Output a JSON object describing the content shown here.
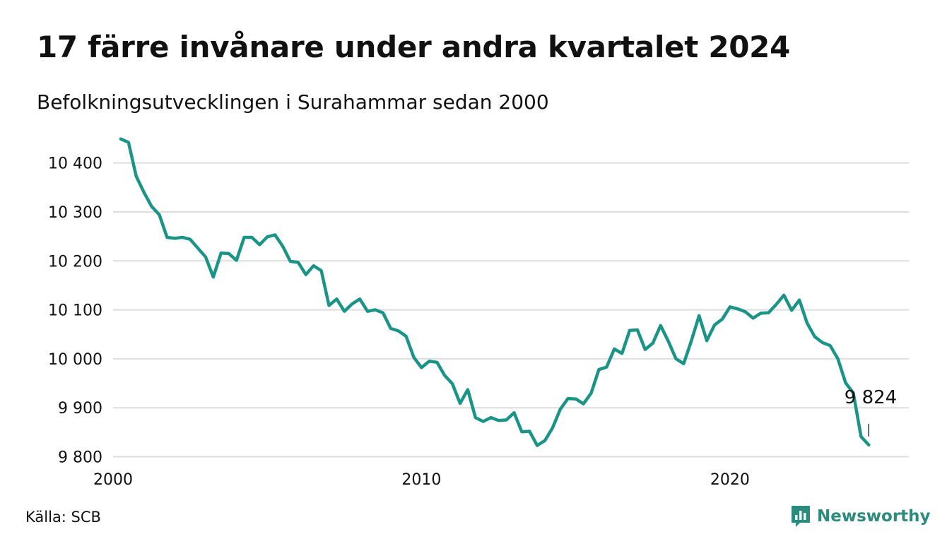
{
  "header": {
    "title": "17 färre invånare under andra kvartalet 2024",
    "subtitle": "Befolkningsutvecklingen i Surahammar sedan 2000"
  },
  "footer": {
    "source": "Källa: SCB",
    "brand": "Newsworthy"
  },
  "colors": {
    "line": "#1a9486",
    "grid": "#dddddd",
    "brand": "#2a8c7c",
    "text": "#111111"
  },
  "chart_data": {
    "type": "line",
    "title": "17 färre invånare under andra kvartalet 2024",
    "subtitle": "Befolkningsutvecklingen i Surahammar sedan 2000",
    "xlabel": "",
    "ylabel": "",
    "x_ticks": [
      2000,
      2010,
      2020
    ],
    "y_ticks": [
      9800,
      9900,
      10000,
      10100,
      10200,
      10300,
      10400
    ],
    "y_tick_labels": [
      "9 800",
      "9 900",
      "10 000",
      "10 100",
      "10 200",
      "10 300",
      "10 400"
    ],
    "xlim": [
      2000,
      2025.8
    ],
    "ylim": [
      9795,
      10450
    ],
    "grid": "horizontal",
    "legend": "none",
    "last_value_label": "9 824",
    "x_start": 2000.25,
    "x_step": 0.25,
    "values": [
      10449,
      10442,
      10373,
      10340,
      10311,
      10294,
      10248,
      10246,
      10248,
      10244,
      10226,
      10208,
      10167,
      10216,
      10215,
      10201,
      10248,
      10248,
      10233,
      10249,
      10253,
      10230,
      10199,
      10197,
      10172,
      10190,
      10180,
      10109,
      10122,
      10097,
      10112,
      10122,
      10097,
      10100,
      10094,
      10062,
      10057,
      10046,
      10003,
      9982,
      9995,
      9993,
      9966,
      9949,
      9909,
      9937,
      9880,
      9872,
      9880,
      9874,
      9875,
      9890,
      9851,
      9852,
      9823,
      9833,
      9859,
      9897,
      9919,
      9918,
      9908,
      9930,
      9978,
      9983,
      10020,
      10011,
      10058,
      10059,
      10019,
      10032,
      10068,
      10036,
      10000,
      9990,
      10037,
      10088,
      10037,
      10069,
      10081,
      10106,
      10102,
      10096,
      10083,
      10093,
      10094,
      10111,
      10130,
      10099,
      10120,
      10073,
      10045,
      10033,
      10027,
      10000,
      9951,
      9930,
      9841,
      9824
    ]
  }
}
